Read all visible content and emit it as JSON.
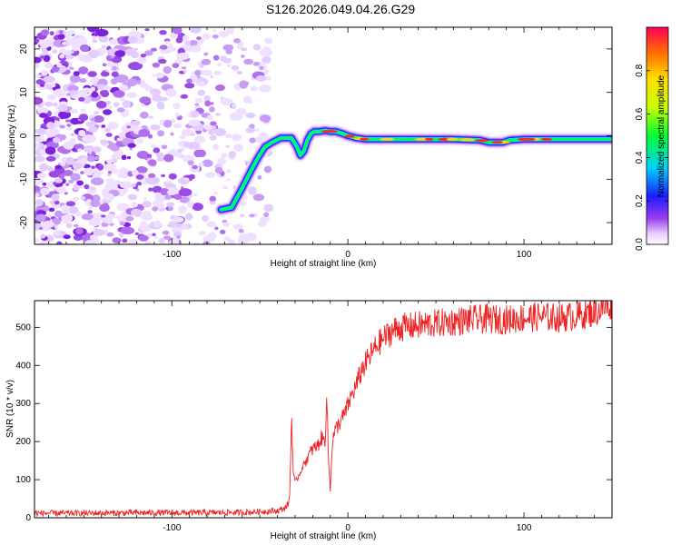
{
  "title": "S126.2026.049.04.26.G29",
  "chart_data": [
    {
      "type": "heatmap",
      "xlabel": "Height of straight line (km)",
      "ylabel": "Frequency (Hz)",
      "xlim": [
        -178,
        150
      ],
      "ylim": [
        -25,
        25
      ],
      "xticks": [
        -100,
        0,
        100
      ],
      "yticks": [
        -20,
        -10,
        0,
        10,
        20
      ],
      "trace_x": [
        -72,
        -66,
        -60,
        -55,
        -51,
        -47,
        -43,
        -38,
        -35,
        -32,
        -29,
        -27,
        -25,
        -23,
        -21,
        -19,
        -16,
        -13,
        -10,
        -7,
        -3,
        0,
        5,
        10,
        20,
        40,
        60,
        75,
        80,
        88,
        92,
        100,
        115,
        130,
        140,
        149
      ],
      "trace_y": [
        -17,
        -16.5,
        -12,
        -8,
        -5,
        -2.5,
        -1.5,
        -0.5,
        -0.5,
        -0.5,
        -2.5,
        -4.5,
        -3.5,
        -1,
        0.5,
        1,
        1,
        1.2,
        1,
        1,
        0.5,
        0,
        -0.5,
        -0.8,
        -0.8,
        -0.8,
        -0.8,
        -1,
        -1.5,
        -1.5,
        -1,
        -0.8,
        -0.8,
        -0.8,
        -0.8,
        -0.8
      ],
      "noise_x_max": -47
    },
    {
      "type": "colorbar",
      "label": "Normalized spectral amplitude",
      "range": [
        0.0,
        1.0
      ],
      "ticks": [
        0.0,
        0.2,
        0.4,
        0.6,
        0.8
      ]
    },
    {
      "type": "line",
      "xlabel": "Height of straight line (km)",
      "ylabel": "SNR (10 * v/v)",
      "xlim": [
        -178,
        150
      ],
      "ylim": [
        0,
        570
      ],
      "xticks": [
        -100,
        0,
        100
      ],
      "yticks": [
        0,
        100,
        200,
        300,
        400,
        500
      ],
      "series": [
        {
          "name": "SNR",
          "color": "#ee2222",
          "x": [
            -178,
            -150,
            -120,
            -90,
            -60,
            -40,
            -36,
            -34,
            -33,
            -32,
            -31,
            -30,
            -28,
            -24,
            -20,
            -17,
            -15,
            -13,
            -12,
            -11,
            -10,
            -9,
            -8,
            -6,
            -2,
            2,
            5,
            8,
            12,
            16,
            20,
            25,
            30,
            40,
            50,
            60,
            70,
            80,
            90,
            100,
            110,
            120,
            130,
            140,
            145,
            150
          ],
          "y": [
            12,
            12,
            13,
            13,
            14,
            18,
            25,
            35,
            60,
            270,
            120,
            90,
            110,
            150,
            180,
            190,
            210,
            200,
            330,
            150,
            70,
            190,
            220,
            240,
            270,
            320,
            350,
            390,
            420,
            450,
            470,
            490,
            500,
            505,
            510,
            515,
            520,
            522,
            520,
            525,
            528,
            525,
            530,
            540,
            550,
            560
          ],
          "noise_amp": 8
        }
      ]
    }
  ]
}
